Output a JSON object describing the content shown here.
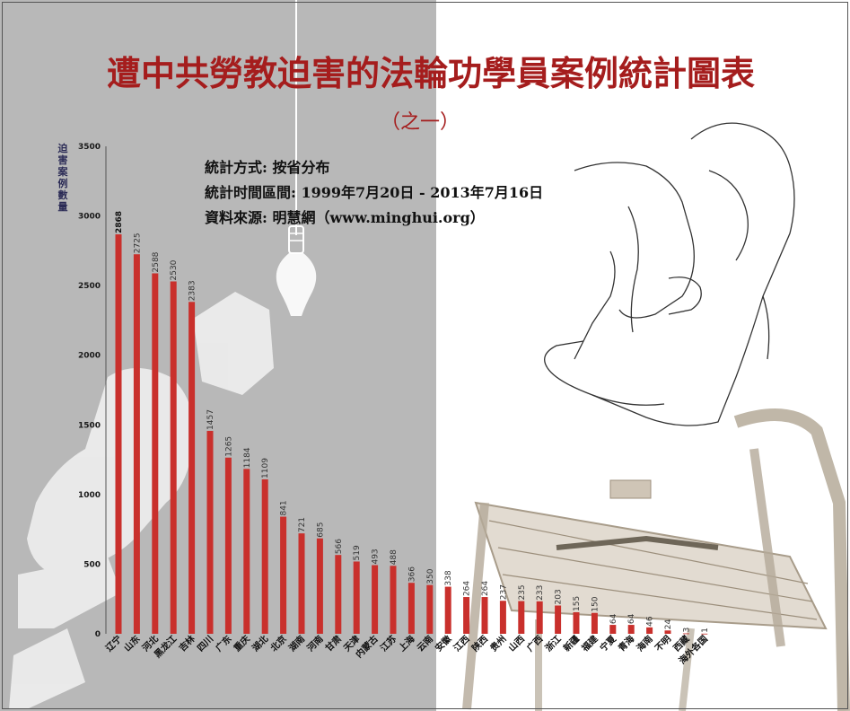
{
  "chart_data": {
    "type": "bar",
    "title": "遭中共勞教迫害的法輪功學員案例統計圖表",
    "subtitle": "（之一）",
    "info_lines": [
      "統計方式:  按省分布",
      "統計时間區間:  1999年7月20日 - 2013年7月16日",
      "資料來源:  明慧網（www.minghui.org）"
    ],
    "ylabel": "迫害案例數量",
    "ylim": [
      0,
      3500
    ],
    "yticks": [
      "0",
      "500",
      "1000",
      "1500",
      "2000",
      "2500",
      "3000",
      "3500"
    ],
    "categories": [
      "辽宁",
      "山东",
      "河北",
      "黑龙江",
      "吉林",
      "四川",
      "广东",
      "重庆",
      "湖北",
      "北京",
      "湖南",
      "河南",
      "甘肃",
      "天津",
      "内蒙古",
      "江苏",
      "上海",
      "云南",
      "安徽",
      "江西",
      "陕西",
      "贵州",
      "山西",
      "广西",
      "浙江",
      "新疆",
      "福建",
      "宁夏",
      "青海",
      "海南",
      "不明",
      "西藏",
      "海外各国"
    ],
    "values": [
      2868,
      2725,
      2588,
      2530,
      2383,
      1457,
      1265,
      1184,
      1109,
      841,
      721,
      685,
      566,
      519,
      493,
      488,
      366,
      350,
      338,
      264,
      264,
      237,
      235,
      233,
      203,
      155,
      150,
      64,
      64,
      46,
      24,
      3,
      1
    ],
    "value_labels": [
      "2868",
      "2725",
      "2588",
      "2530",
      "2383",
      "1457",
      "1265",
      "1184",
      "1109",
      "841",
      "721",
      "685",
      "566",
      "519",
      "493",
      "488",
      "366",
      "350",
      "338",
      "264",
      "264",
      "237",
      "235",
      "233",
      "203",
      "155",
      "150",
      "64",
      "64",
      "46",
      "24",
      "3",
      "1"
    ],
    "bar_color": "#c9302c",
    "title_color": "#a51d1d",
    "grid": false,
    "legend": "none"
  }
}
